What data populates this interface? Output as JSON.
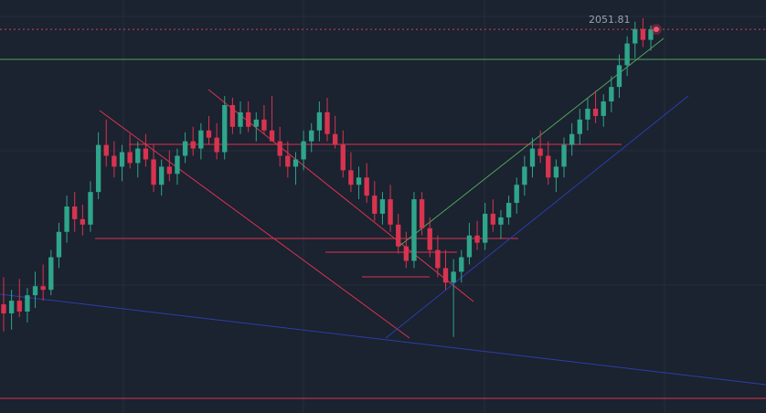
{
  "chart_data": {
    "type": "candlestick",
    "price_label": "2051.81",
    "y_range": [
      1840,
      2068
    ],
    "last_price": 2051.81,
    "candles": [
      [
        1900,
        1915,
        1885,
        1895
      ],
      [
        1895,
        1908,
        1886,
        1902
      ],
      [
        1902,
        1914,
        1893,
        1896
      ],
      [
        1896,
        1909,
        1890,
        1905
      ],
      [
        1905,
        1918,
        1898,
        1910
      ],
      [
        1910,
        1922,
        1902,
        1908
      ],
      [
        1908,
        1930,
        1905,
        1926
      ],
      [
        1926,
        1945,
        1920,
        1940
      ],
      [
        1940,
        1960,
        1934,
        1954
      ],
      [
        1954,
        1962,
        1940,
        1947
      ],
      [
        1947,
        1955,
        1938,
        1944
      ],
      [
        1944,
        1968,
        1940,
        1962
      ],
      [
        1962,
        1995,
        1958,
        1988
      ],
      [
        1988,
        2002,
        1976,
        1982
      ],
      [
        1982,
        1990,
        1970,
        1976
      ],
      [
        1976,
        1988,
        1968,
        1984
      ],
      [
        1984,
        1994,
        1975,
        1978
      ],
      [
        1978,
        1990,
        1970,
        1986
      ],
      [
        1986,
        1994,
        1976,
        1980
      ],
      [
        1980,
        1988,
        1962,
        1966
      ],
      [
        1966,
        1980,
        1960,
        1976
      ],
      [
        1976,
        1985,
        1968,
        1972
      ],
      [
        1972,
        1986,
        1966,
        1982
      ],
      [
        1982,
        1995,
        1978,
        1990
      ],
      [
        1990,
        1998,
        1982,
        1986
      ],
      [
        1986,
        2000,
        1980,
        1996
      ],
      [
        1996,
        2004,
        1988,
        1992
      ],
      [
        1992,
        2000,
        1980,
        1984
      ],
      [
        1984,
        2015,
        1980,
        2010
      ],
      [
        2010,
        2014,
        1994,
        1998
      ],
      [
        1998,
        2012,
        1994,
        2006
      ],
      [
        2006,
        2012,
        1995,
        1998
      ],
      [
        1998,
        2006,
        1990,
        2002
      ],
      [
        2002,
        2010,
        1994,
        1996
      ],
      [
        1996,
        2015,
        1990,
        1990
      ],
      [
        1990,
        1998,
        1976,
        1982
      ],
      [
        1982,
        1990,
        1970,
        1976
      ],
      [
        1976,
        1984,
        1966,
        1980
      ],
      [
        1980,
        1996,
        1974,
        1990
      ],
      [
        1990,
        2000,
        1984,
        1996
      ],
      [
        1996,
        2012,
        1990,
        2006
      ],
      [
        2006,
        2014,
        1990,
        1994
      ],
      [
        1994,
        2004,
        1986,
        1988
      ],
      [
        1988,
        1996,
        1970,
        1974
      ],
      [
        1974,
        1984,
        1962,
        1966
      ],
      [
        1966,
        1976,
        1958,
        1970
      ],
      [
        1970,
        1978,
        1956,
        1960
      ],
      [
        1960,
        1968,
        1946,
        1950
      ],
      [
        1950,
        1962,
        1944,
        1958
      ],
      [
        1958,
        1966,
        1940,
        1944
      ],
      [
        1944,
        1950,
        1928,
        1932
      ],
      [
        1932,
        1940,
        1920,
        1924
      ],
      [
        1924,
        1962,
        1920,
        1958
      ],
      [
        1958,
        1962,
        1938,
        1942
      ],
      [
        1942,
        1948,
        1926,
        1930
      ],
      [
        1930,
        1938,
        1915,
        1920
      ],
      [
        1920,
        1930,
        1908,
        1912
      ],
      [
        1912,
        1925,
        1882,
        1918
      ],
      [
        1918,
        1930,
        1912,
        1926
      ],
      [
        1926,
        1945,
        1922,
        1938
      ],
      [
        1938,
        1946,
        1930,
        1934
      ],
      [
        1934,
        1956,
        1930,
        1950
      ],
      [
        1950,
        1958,
        1940,
        1944
      ],
      [
        1944,
        1952,
        1936,
        1948
      ],
      [
        1948,
        1960,
        1944,
        1956
      ],
      [
        1956,
        1970,
        1950,
        1966
      ],
      [
        1966,
        1982,
        1960,
        1976
      ],
      [
        1976,
        1992,
        1970,
        1986
      ],
      [
        1986,
        1996,
        1978,
        1982
      ],
      [
        1982,
        1990,
        1966,
        1970
      ],
      [
        1970,
        1980,
        1962,
        1976
      ],
      [
        1976,
        1992,
        1970,
        1988
      ],
      [
        1988,
        2000,
        1982,
        1994
      ],
      [
        1994,
        2008,
        1988,
        2002
      ],
      [
        2002,
        2014,
        1996,
        2008
      ],
      [
        2008,
        2018,
        2000,
        2004
      ],
      [
        2004,
        2016,
        1998,
        2012
      ],
      [
        2012,
        2026,
        2006,
        2020
      ],
      [
        2020,
        2038,
        2014,
        2032
      ],
      [
        2032,
        2048,
        2026,
        2044
      ],
      [
        2044,
        2056,
        2036,
        2052
      ],
      [
        2052,
        2058,
        2042,
        2046
      ],
      [
        2046,
        2054,
        2040,
        2051.81
      ]
    ]
  }
}
